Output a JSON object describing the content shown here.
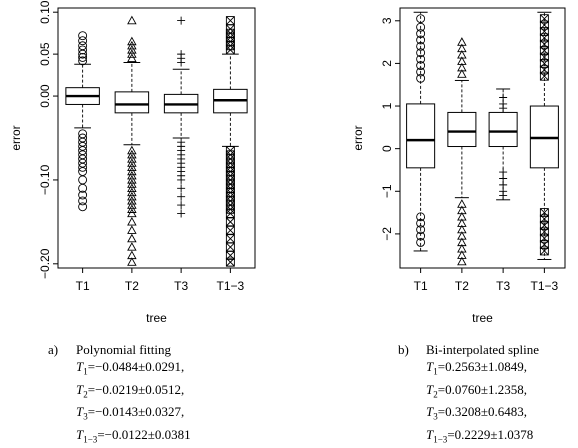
{
  "chart_data": [
    {
      "type": "boxplot",
      "xlabel": "tree",
      "ylabel": "error",
      "categories": [
        "T1",
        "T2",
        "T3",
        "T1−3"
      ],
      "yticks": [
        0.1,
        0.05,
        0.0,
        -0.1,
        -0.2
      ],
      "ytick_labels": [
        "0.10",
        "0.05",
        "0.00",
        "−0.10",
        "−0.20"
      ],
      "ylim": [
        -0.205,
        0.105
      ],
      "grid": false,
      "boxes": [
        {
          "name": "T1",
          "q1": -0.01,
          "median": 0.0,
          "q3": 0.01,
          "whisker_low": -0.038,
          "whisker_high": 0.038,
          "marker": "circle",
          "outliers": [
            0.072,
            0.066,
            0.06,
            0.055,
            0.05,
            0.046,
            0.042,
            -0.045,
            -0.05,
            -0.055,
            -0.06,
            -0.065,
            -0.07,
            -0.075,
            -0.08,
            -0.085,
            -0.09,
            -0.1,
            -0.11,
            -0.118,
            -0.125,
            -0.132
          ]
        },
        {
          "name": "T2",
          "q1": -0.02,
          "median": -0.01,
          "q3": 0.005,
          "whisker_low": -0.058,
          "whisker_high": 0.04,
          "marker": "triangle",
          "outliers": [
            0.09,
            0.065,
            0.06,
            0.055,
            0.05,
            0.045,
            -0.065,
            -0.07,
            -0.075,
            -0.08,
            -0.085,
            -0.09,
            -0.095,
            -0.1,
            -0.105,
            -0.11,
            -0.115,
            -0.12,
            -0.125,
            -0.13,
            -0.135,
            -0.14,
            -0.15,
            -0.16,
            -0.17,
            -0.18,
            -0.19,
            -0.198
          ]
        },
        {
          "name": "T3",
          "q1": -0.02,
          "median": -0.01,
          "q3": 0.002,
          "whisker_low": -0.05,
          "whisker_high": 0.032,
          "marker": "plus",
          "outliers": [
            0.09,
            0.05,
            0.045,
            0.04,
            -0.055,
            -0.06,
            -0.065,
            -0.07,
            -0.075,
            -0.08,
            -0.085,
            -0.09,
            -0.095,
            -0.1,
            -0.11,
            -0.12,
            -0.13,
            -0.14
          ]
        },
        {
          "name": "T1−3",
          "q1": -0.02,
          "median": -0.005,
          "q3": 0.008,
          "whisker_low": -0.06,
          "whisker_high": 0.05,
          "marker": "boxx",
          "outliers": [
            0.09,
            0.08,
            0.075,
            0.07,
            0.065,
            0.06,
            0.055,
            -0.065,
            -0.07,
            -0.075,
            -0.08,
            -0.085,
            -0.09,
            -0.095,
            -0.1,
            -0.105,
            -0.11,
            -0.115,
            -0.12,
            -0.125,
            -0.13,
            -0.135,
            -0.14,
            -0.15,
            -0.16,
            -0.17,
            -0.18,
            -0.19,
            -0.198
          ]
        }
      ],
      "caption": {
        "letter": "a)",
        "title": "Polynomial fitting",
        "lines": [
          {
            "sym": "T",
            "sub": "1",
            "value": "=−0.0484±0.0291,"
          },
          {
            "sym": "T",
            "sub": "2",
            "value": "=−0.0219±0.0512,"
          },
          {
            "sym": "T",
            "sub": "3",
            "value": "=−0.0143±0.0327,"
          },
          {
            "sym": "T",
            "sub": "1−3",
            "value": "=−0.0122±0.0381"
          }
        ]
      }
    },
    {
      "type": "boxplot",
      "xlabel": "tree",
      "ylabel": "error",
      "categories": [
        "T1",
        "T2",
        "T3",
        "T1−3"
      ],
      "yticks": [
        3,
        2,
        1,
        0,
        -1,
        -2
      ],
      "ytick_labels": [
        "3",
        "2",
        "1",
        "0",
        "−1",
        "−2"
      ],
      "ylim": [
        -2.8,
        3.3
      ],
      "grid": false,
      "boxes": [
        {
          "name": "T1",
          "q1": -0.45,
          "median": 0.2,
          "q3": 1.05,
          "whisker_low": -2.4,
          "whisker_high": 3.2,
          "marker": "circle",
          "outliers": [
            3.05,
            2.85,
            2.7,
            2.55,
            2.4,
            2.25,
            2.1,
            1.95,
            1.8,
            1.65,
            -1.6,
            -1.75,
            -1.9,
            -2.05,
            -2.2
          ]
        },
        {
          "name": "T2",
          "q1": 0.05,
          "median": 0.4,
          "q3": 0.85,
          "whisker_low": -1.15,
          "whisker_high": 1.6,
          "marker": "triangle",
          "outliers": [
            2.5,
            2.35,
            2.2,
            2.05,
            1.9,
            1.75,
            -1.3,
            -1.45,
            -1.6,
            -1.75,
            -1.9,
            -2.05,
            -2.2,
            -2.35,
            -2.5,
            -2.65
          ]
        },
        {
          "name": "T3",
          "q1": 0.05,
          "median": 0.4,
          "q3": 0.85,
          "whisker_low": -1.2,
          "whisker_high": 1.4,
          "marker": "plus",
          "outliers": [
            1.2,
            1.05,
            0.95,
            -0.55,
            -0.7,
            -0.85,
            -1.0,
            -1.1
          ]
        },
        {
          "name": "T1−3",
          "q1": -0.45,
          "median": 0.25,
          "q3": 1.0,
          "whisker_low": -2.6,
          "whisker_high": 3.2,
          "marker": "boxx",
          "outliers": [
            3.05,
            2.9,
            2.75,
            2.6,
            2.45,
            2.3,
            2.15,
            2.0,
            1.85,
            1.7,
            -1.5,
            -1.65,
            -1.8,
            -1.95,
            -2.1,
            -2.25,
            -2.4
          ]
        }
      ],
      "caption": {
        "letter": "b)",
        "title": "Bi-interpolated spline",
        "lines": [
          {
            "sym": "T",
            "sub": "1",
            "value": "=0.2563±1.0849,"
          },
          {
            "sym": "T",
            "sub": "2",
            "value": "=0.0760±1.2358,"
          },
          {
            "sym": "T",
            "sub": "3",
            "value": "=0.3208±0.6483,"
          },
          {
            "sym": "T",
            "sub": "1−3",
            "value": "=0.2229±1.0378"
          }
        ]
      }
    }
  ]
}
